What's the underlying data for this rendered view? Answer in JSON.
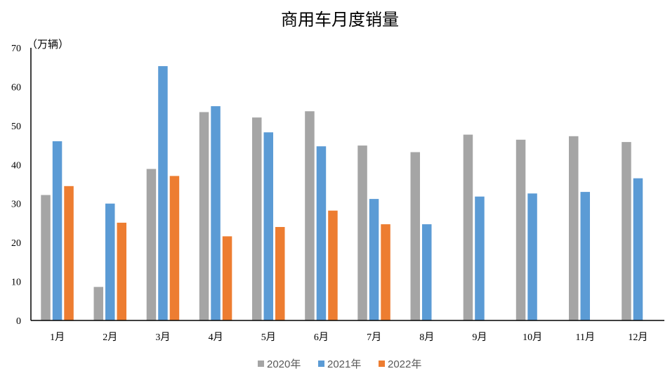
{
  "chart_data": {
    "type": "bar",
    "title": "商用车月度销量",
    "ylabel": "（万辆）",
    "xlabel": "",
    "ylim": [
      0,
      70
    ],
    "yticks": [
      0,
      10,
      20,
      30,
      40,
      50,
      60,
      70
    ],
    "categories": [
      "1月",
      "2月",
      "3月",
      "4月",
      "5月",
      "6月",
      "7月",
      "8月",
      "9月",
      "10月",
      "11月",
      "12月"
    ],
    "series": [
      {
        "name": "2020年",
        "color": "#a5a5a5",
        "values": [
          32.2,
          8.6,
          38.9,
          53.5,
          52.1,
          53.7,
          44.9,
          43.2,
          47.7,
          46.4,
          47.3,
          45.8
        ]
      },
      {
        "name": "2021年",
        "color": "#5b9bd5",
        "values": [
          46.0,
          30.0,
          65.3,
          55.0,
          48.3,
          44.7,
          31.2,
          24.7,
          31.8,
          32.6,
          33.0,
          36.5
        ]
      },
      {
        "name": "2022年",
        "color": "#ed7d31",
        "values": [
          34.5,
          25.1,
          37.1,
          21.6,
          24.0,
          28.2,
          24.7,
          null,
          null,
          null,
          null,
          null
        ]
      }
    ],
    "grid": false,
    "legend_position": "bottom"
  }
}
